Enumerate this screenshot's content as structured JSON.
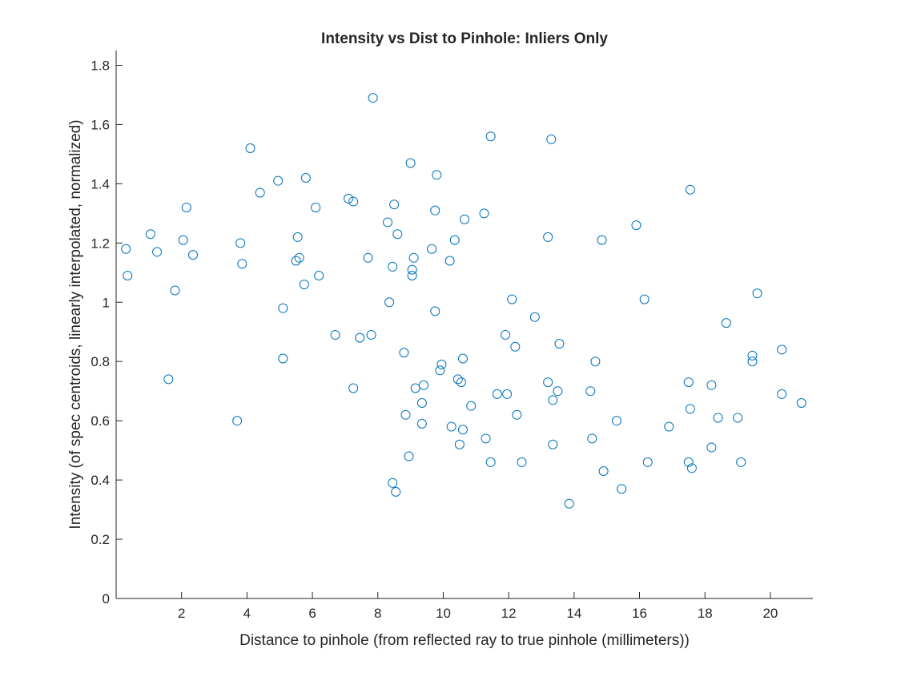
{
  "chart_data": {
    "type": "scatter",
    "title": "Intensity vs Dist to Pinhole: Inliers Only",
    "xlabel": "Distance to pinhole (from reflected ray to true pinhole (millimeters))",
    "ylabel": "Intensity (of spec centroids, linearly interpolated, normalized)",
    "xlim": [
      0,
      21.3
    ],
    "ylim": [
      0,
      1.85
    ],
    "xticks": [
      2,
      4,
      6,
      8,
      10,
      12,
      14,
      16,
      18,
      20
    ],
    "yticks": [
      0,
      0.2,
      0.4,
      0.6,
      0.8,
      1,
      1.2,
      1.4,
      1.6,
      1.8
    ],
    "xtick_labels": [
      "2",
      "4",
      "6",
      "8",
      "10",
      "12",
      "14",
      "16",
      "18",
      "20"
    ],
    "ytick_labels": [
      "0",
      "0.2",
      "0.4",
      "0.6",
      "0.8",
      "1",
      "1.2",
      "1.4",
      "1.6",
      "1.8"
    ],
    "grid": false,
    "marker_color": "#0072BD",
    "marker": "circle-open",
    "series": [
      {
        "points": [
          [
            0.3,
            1.18
          ],
          [
            0.35,
            1.09
          ],
          [
            1.05,
            1.23
          ],
          [
            1.25,
            1.17
          ],
          [
            1.6,
            0.74
          ],
          [
            1.8,
            1.04
          ],
          [
            2.05,
            1.21
          ],
          [
            2.15,
            1.32
          ],
          [
            2.35,
            1.16
          ],
          [
            3.7,
            0.6
          ],
          [
            3.8,
            1.2
          ],
          [
            3.85,
            1.13
          ],
          [
            4.1,
            1.52
          ],
          [
            4.4,
            1.37
          ],
          [
            4.95,
            1.41
          ],
          [
            5.1,
            0.98
          ],
          [
            5.1,
            0.81
          ],
          [
            5.5,
            1.14
          ],
          [
            5.55,
            1.22
          ],
          [
            5.6,
            1.15
          ],
          [
            5.75,
            1.06
          ],
          [
            5.8,
            1.42
          ],
          [
            6.1,
            1.32
          ],
          [
            6.2,
            1.09
          ],
          [
            6.7,
            0.89
          ],
          [
            7.1,
            1.35
          ],
          [
            7.25,
            0.71
          ],
          [
            7.25,
            1.34
          ],
          [
            7.45,
            0.88
          ],
          [
            7.7,
            1.15
          ],
          [
            7.8,
            0.89
          ],
          [
            7.85,
            1.69
          ],
          [
            8.3,
            1.27
          ],
          [
            8.35,
            1.0
          ],
          [
            8.45,
            1.12
          ],
          [
            8.45,
            0.39
          ],
          [
            8.5,
            1.33
          ],
          [
            8.55,
            0.36
          ],
          [
            8.6,
            1.23
          ],
          [
            8.8,
            0.83
          ],
          [
            8.85,
            0.62
          ],
          [
            8.95,
            0.48
          ],
          [
            9.0,
            1.47
          ],
          [
            9.05,
            1.09
          ],
          [
            9.05,
            1.11
          ],
          [
            9.1,
            1.15
          ],
          [
            9.15,
            0.71
          ],
          [
            9.35,
            0.59
          ],
          [
            9.35,
            0.66
          ],
          [
            9.4,
            0.72
          ],
          [
            9.65,
            1.18
          ],
          [
            9.75,
            1.31
          ],
          [
            9.75,
            0.97
          ],
          [
            9.8,
            1.43
          ],
          [
            9.9,
            0.77
          ],
          [
            9.95,
            0.79
          ],
          [
            10.2,
            1.14
          ],
          [
            10.25,
            0.58
          ],
          [
            10.35,
            1.21
          ],
          [
            10.45,
            0.74
          ],
          [
            10.5,
            0.52
          ],
          [
            10.55,
            0.73
          ],
          [
            10.6,
            0.57
          ],
          [
            10.6,
            0.81
          ],
          [
            10.65,
            1.28
          ],
          [
            10.85,
            0.65
          ],
          [
            11.25,
            1.3
          ],
          [
            11.3,
            0.54
          ],
          [
            11.45,
            1.56
          ],
          [
            11.45,
            0.46
          ],
          [
            11.65,
            0.69
          ],
          [
            11.9,
            0.89
          ],
          [
            11.95,
            0.69
          ],
          [
            12.1,
            1.01
          ],
          [
            12.2,
            0.85
          ],
          [
            12.25,
            0.62
          ],
          [
            12.4,
            0.46
          ],
          [
            12.8,
            0.95
          ],
          [
            13.2,
            1.22
          ],
          [
            13.2,
            0.73
          ],
          [
            13.3,
            1.55
          ],
          [
            13.35,
            0.52
          ],
          [
            13.35,
            0.67
          ],
          [
            13.5,
            0.7
          ],
          [
            13.55,
            0.86
          ],
          [
            13.85,
            0.32
          ],
          [
            14.5,
            0.7
          ],
          [
            14.55,
            0.54
          ],
          [
            14.65,
            0.8
          ],
          [
            14.85,
            1.21
          ],
          [
            14.9,
            0.43
          ],
          [
            15.3,
            0.6
          ],
          [
            15.45,
            0.37
          ],
          [
            15.9,
            1.26
          ],
          [
            16.15,
            1.01
          ],
          [
            16.25,
            0.46
          ],
          [
            16.9,
            0.58
          ],
          [
            17.5,
            0.73
          ],
          [
            17.5,
            0.46
          ],
          [
            17.55,
            1.38
          ],
          [
            17.55,
            0.64
          ],
          [
            17.6,
            0.44
          ],
          [
            18.2,
            0.72
          ],
          [
            18.2,
            0.51
          ],
          [
            18.4,
            0.61
          ],
          [
            18.65,
            0.93
          ],
          [
            19.0,
            0.61
          ],
          [
            19.1,
            0.46
          ],
          [
            19.45,
            0.82
          ],
          [
            19.45,
            0.8
          ],
          [
            19.6,
            1.03
          ],
          [
            20.35,
            0.84
          ],
          [
            20.35,
            0.69
          ],
          [
            20.95,
            0.66
          ]
        ]
      }
    ]
  }
}
